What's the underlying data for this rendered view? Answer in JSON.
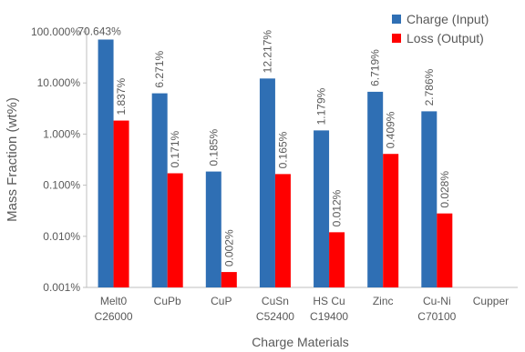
{
  "chart_data": {
    "type": "bar",
    "title": "",
    "xlabel": "Charge Materials",
    "ylabel": "Mass Fraction (wt%)",
    "yscale": "log",
    "ylim": [
      0.001,
      100
    ],
    "ytick_labels": [
      "0.001%",
      "0.010%",
      "0.100%",
      "1.000%",
      "10.000%",
      "100.000%"
    ],
    "grid": false,
    "legend_position": "top-right",
    "categories": [
      [
        "Melt0",
        "C26000"
      ],
      [
        "CuPb"
      ],
      [
        "CuP"
      ],
      [
        "CuSn",
        "C52400"
      ],
      [
        "HS Cu",
        "C19400"
      ],
      [
        "Zinc"
      ],
      [
        "Cu-Ni",
        "C70100"
      ],
      [
        "Cupper"
      ]
    ],
    "series": [
      {
        "name": "Charge (Input)",
        "color": "#2f6fb4",
        "values": [
          70.643,
          6.271,
          0.185,
          12.217,
          1.179,
          6.719,
          2.786,
          null
        ],
        "labels": [
          "70.643%",
          "6.271%",
          "0.185%",
          "12.217%",
          "1.179%",
          "6.719%",
          "2.786%",
          ""
        ]
      },
      {
        "name": "Loss (Output)",
        "color": "#ff0000",
        "values": [
          1.837,
          0.171,
          0.002,
          0.165,
          0.012,
          0.409,
          0.028,
          null
        ],
        "labels": [
          "1.837%",
          "0.171%",
          "0.002%",
          "0.165%",
          "0.012%",
          "0.409%",
          "0.028%",
          ""
        ]
      }
    ]
  }
}
